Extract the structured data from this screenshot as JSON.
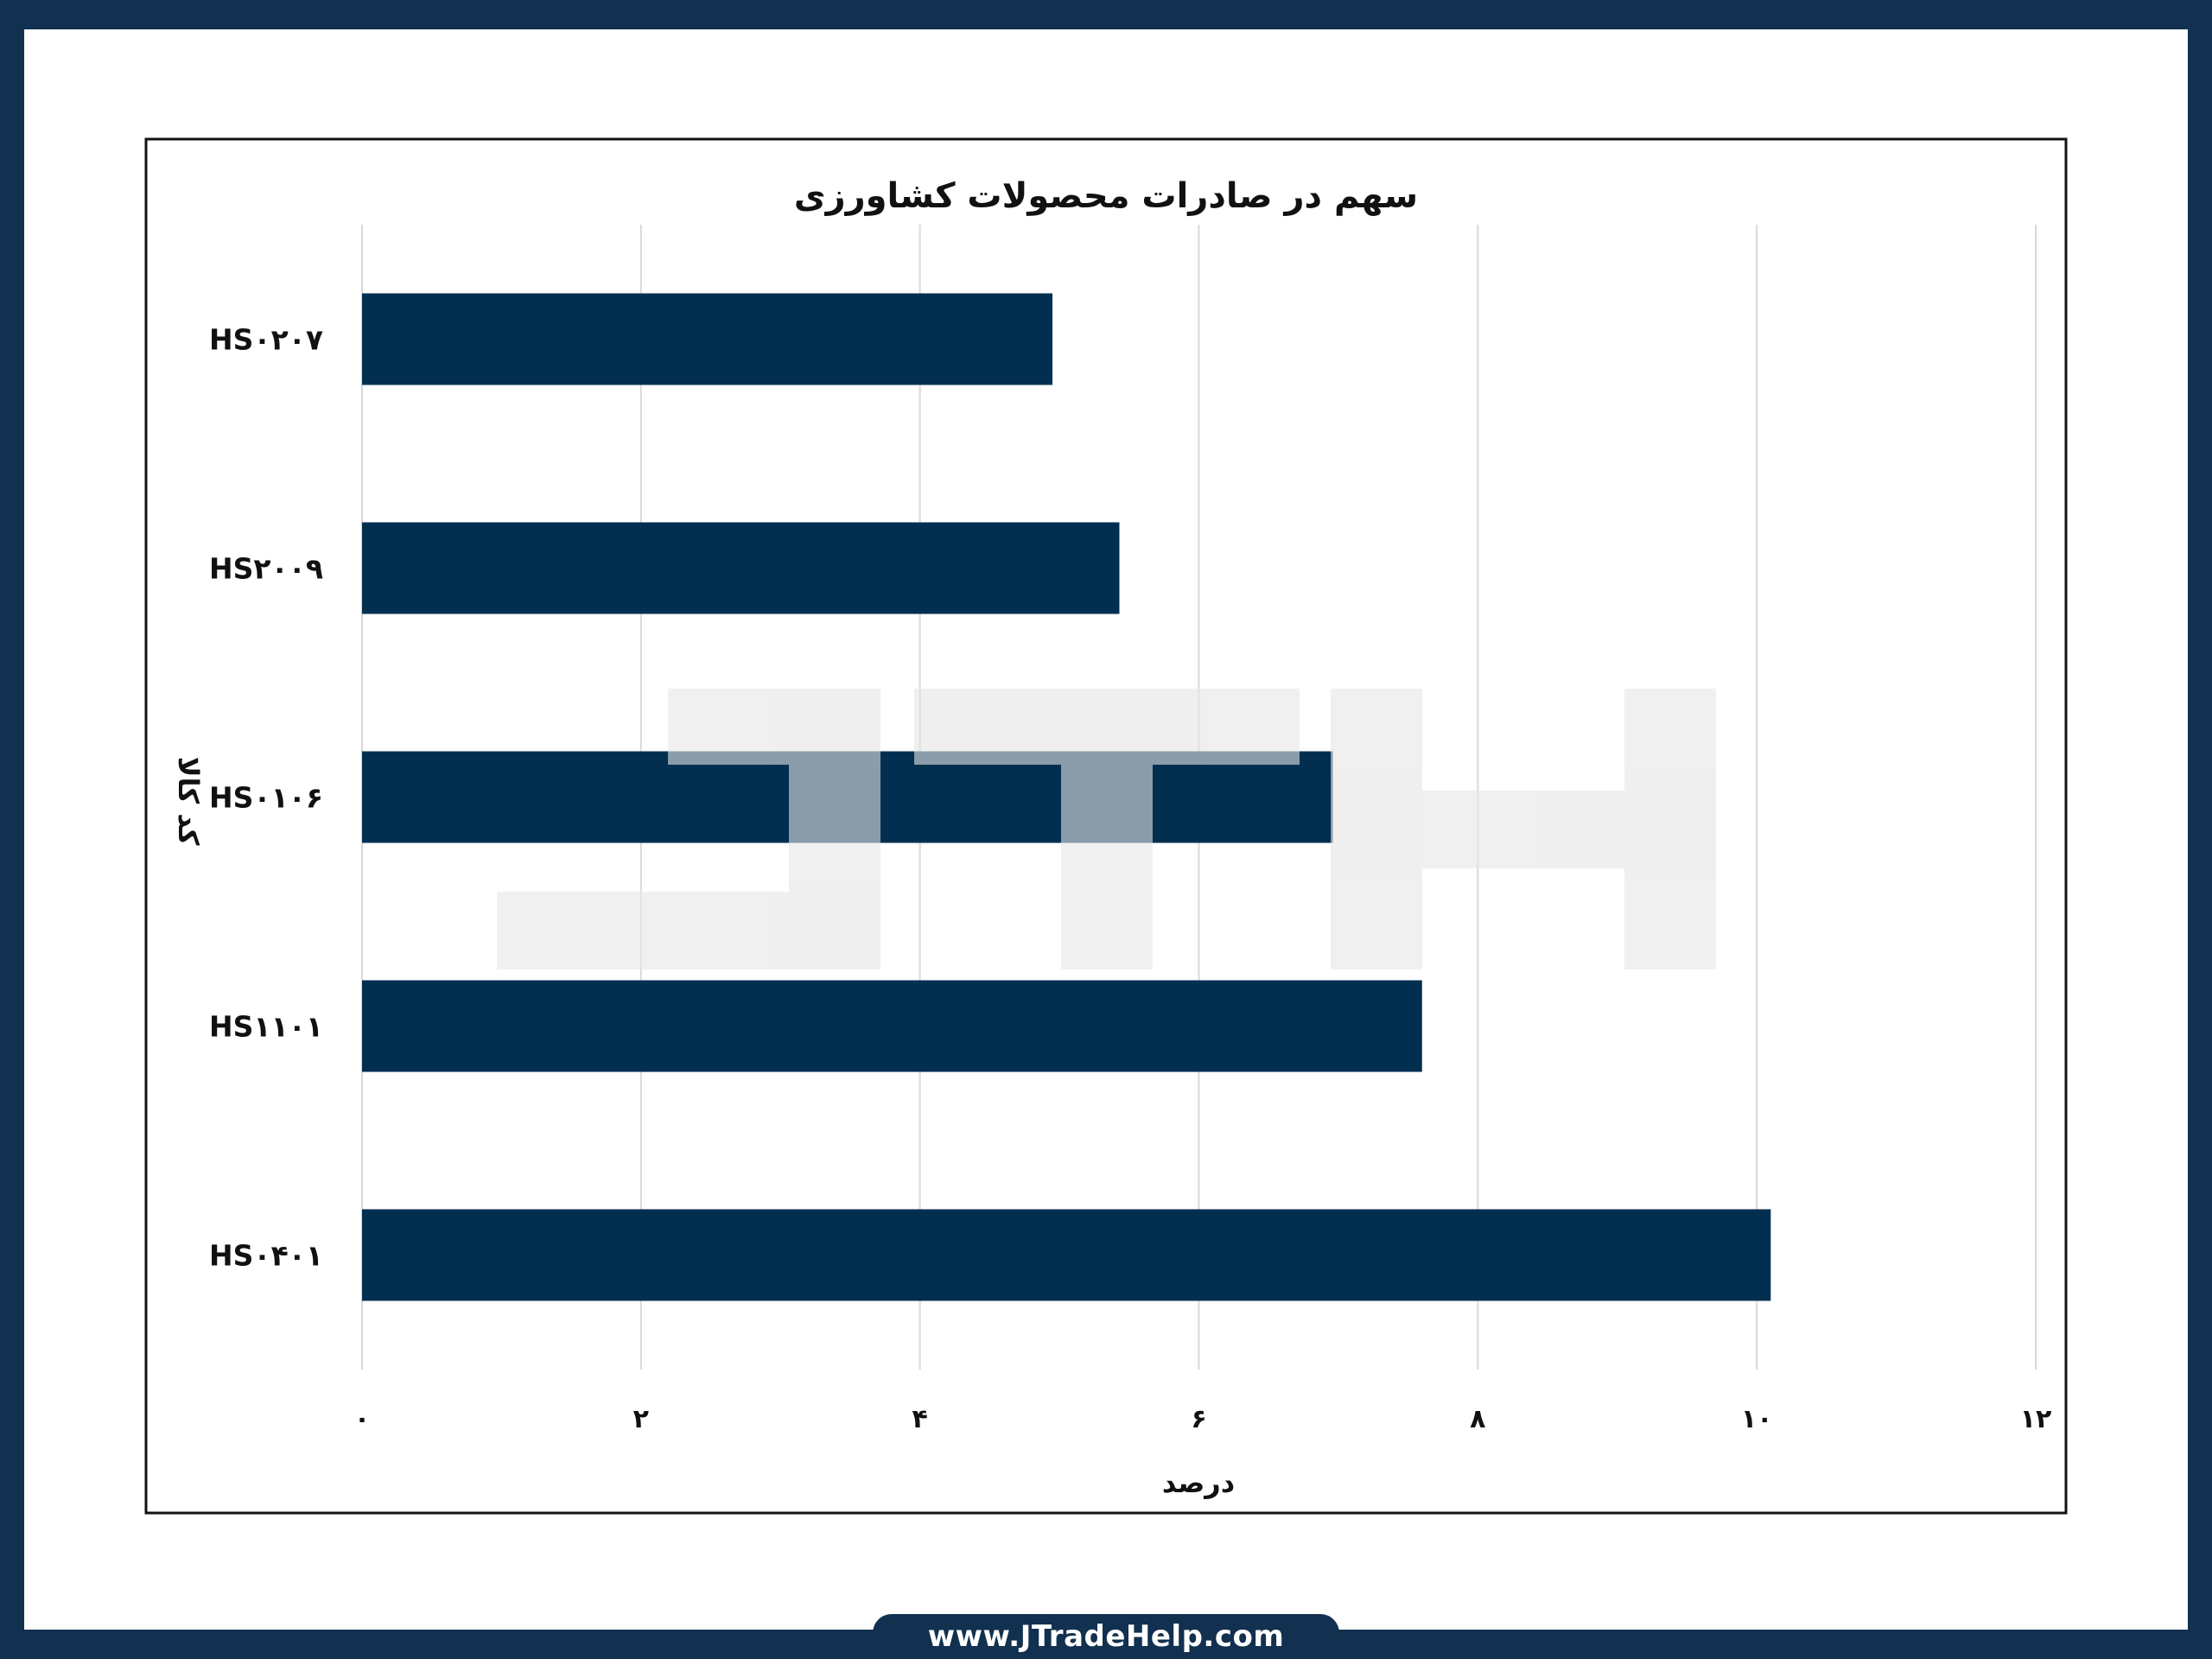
{
  "chart_data": {
    "type": "bar",
    "orientation": "horizontal",
    "title": "سهم در صادرات محصولات کشاورزی",
    "xlabel": "درصد",
    "ylabel": "کد کالا",
    "categories": [
      "HS۰۲۰۷",
      "HS۲۰۰۹",
      "HS۰۱۰۶",
      "HS۱۱۰۱",
      "HS۰۴۰۱"
    ],
    "values": [
      4.95,
      5.43,
      6.96,
      7.6,
      10.1
    ],
    "xlim": [
      0,
      12
    ],
    "xticks": [
      0,
      2,
      4,
      6,
      8,
      10,
      12
    ],
    "xtick_labels": [
      "۰",
      "۲",
      "۴",
      "۶",
      "۸",
      "۱۰",
      "۱۲"
    ],
    "grid": "vertical",
    "legend": "none",
    "bar_color": "#022f50",
    "watermark_color": "#e6e6e6"
  },
  "footer": {
    "url": "www.JTradeHelp.com"
  }
}
